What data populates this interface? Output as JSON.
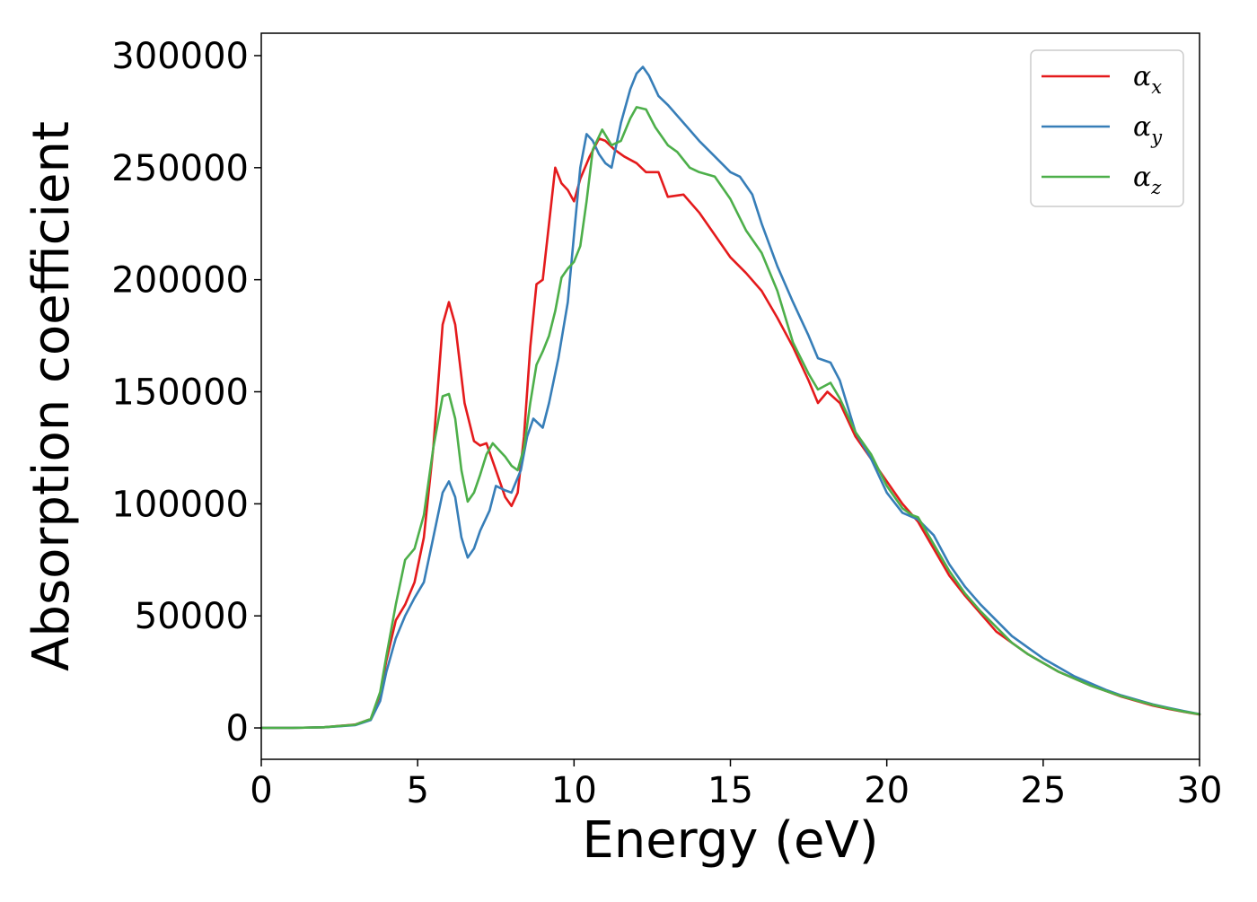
{
  "chart_data": {
    "type": "line",
    "xlabel": "Energy (eV)",
    "ylabel": "Absorption coefficient",
    "xlim": [
      0,
      30
    ],
    "ylim": [
      -14000,
      310000
    ],
    "xticks": [
      0,
      5,
      10,
      15,
      20,
      25,
      30
    ],
    "xtick_labels": [
      "0",
      "5",
      "10",
      "15",
      "20",
      "25",
      "30"
    ],
    "yticks": [
      0,
      50000,
      100000,
      150000,
      200000,
      250000,
      300000
    ],
    "ytick_labels": [
      "0",
      "50000",
      "100000",
      "150000",
      "200000",
      "250000",
      "300000"
    ],
    "grid": false,
    "legend_position": "top-right",
    "series": [
      {
        "name": "αx",
        "legend_symbol": "α",
        "legend_subscript": "x",
        "color": "#e41a1c",
        "points": [
          [
            0,
            0
          ],
          [
            1,
            0
          ],
          [
            2,
            300
          ],
          [
            3,
            1500
          ],
          [
            3.5,
            4000
          ],
          [
            3.8,
            15000
          ],
          [
            4,
            30000
          ],
          [
            4.3,
            48000
          ],
          [
            4.6,
            55000
          ],
          [
            4.9,
            65000
          ],
          [
            5.2,
            85000
          ],
          [
            5.5,
            125000
          ],
          [
            5.8,
            180000
          ],
          [
            6,
            190000
          ],
          [
            6.2,
            180000
          ],
          [
            6.5,
            145000
          ],
          [
            6.8,
            128000
          ],
          [
            7,
            126000
          ],
          [
            7.2,
            127000
          ],
          [
            7.5,
            115000
          ],
          [
            7.8,
            103000
          ],
          [
            8,
            99000
          ],
          [
            8.2,
            105000
          ],
          [
            8.4,
            130000
          ],
          [
            8.6,
            170000
          ],
          [
            8.8,
            198000
          ],
          [
            9,
            200000
          ],
          [
            9.2,
            225000
          ],
          [
            9.4,
            250000
          ],
          [
            9.6,
            243000
          ],
          [
            9.8,
            240000
          ],
          [
            10,
            235000
          ],
          [
            10.2,
            245000
          ],
          [
            10.5,
            255000
          ],
          [
            10.8,
            263000
          ],
          [
            11,
            262000
          ],
          [
            11.3,
            258000
          ],
          [
            11.6,
            255000
          ],
          [
            12,
            252000
          ],
          [
            12.3,
            248000
          ],
          [
            12.7,
            248000
          ],
          [
            13,
            237000
          ],
          [
            13.5,
            238000
          ],
          [
            14,
            230000
          ],
          [
            14.5,
            220000
          ],
          [
            15,
            210000
          ],
          [
            15.5,
            203000
          ],
          [
            16,
            195000
          ],
          [
            16.5,
            183000
          ],
          [
            17,
            170000
          ],
          [
            17.5,
            155000
          ],
          [
            17.8,
            145000
          ],
          [
            18.1,
            150000
          ],
          [
            18.5,
            145000
          ],
          [
            19,
            130000
          ],
          [
            19.5,
            120000
          ],
          [
            20,
            110000
          ],
          [
            20.5,
            100000
          ],
          [
            21,
            92000
          ],
          [
            21.5,
            80000
          ],
          [
            22,
            68000
          ],
          [
            22.5,
            59000
          ],
          [
            23,
            51000
          ],
          [
            23.5,
            43000
          ],
          [
            24,
            38000
          ],
          [
            24.5,
            33000
          ],
          [
            25,
            29000
          ],
          [
            25.5,
            25000
          ],
          [
            26,
            22000
          ],
          [
            26.5,
            19000
          ],
          [
            27,
            16500
          ],
          [
            27.5,
            14000
          ],
          [
            28,
            12000
          ],
          [
            28.5,
            10000
          ],
          [
            29,
            8500
          ],
          [
            29.5,
            7200
          ],
          [
            30,
            6000
          ]
        ]
      },
      {
        "name": "αy",
        "legend_symbol": "α",
        "legend_subscript": "y",
        "color": "#377eb8",
        "points": [
          [
            0,
            0
          ],
          [
            1,
            0
          ],
          [
            2,
            300
          ],
          [
            3,
            1200
          ],
          [
            3.5,
            3500
          ],
          [
            3.8,
            12000
          ],
          [
            4,
            25000
          ],
          [
            4.3,
            40000
          ],
          [
            4.6,
            50000
          ],
          [
            4.9,
            58000
          ],
          [
            5.2,
            65000
          ],
          [
            5.5,
            85000
          ],
          [
            5.8,
            105000
          ],
          [
            6,
            110000
          ],
          [
            6.2,
            103000
          ],
          [
            6.4,
            85000
          ],
          [
            6.6,
            76000
          ],
          [
            6.8,
            80000
          ],
          [
            7,
            88000
          ],
          [
            7.3,
            97000
          ],
          [
            7.5,
            108000
          ],
          [
            7.8,
            106000
          ],
          [
            8,
            105000
          ],
          [
            8.3,
            115000
          ],
          [
            8.5,
            130000
          ],
          [
            8.7,
            138000
          ],
          [
            9,
            134000
          ],
          [
            9.2,
            145000
          ],
          [
            9.5,
            165000
          ],
          [
            9.8,
            190000
          ],
          [
            10,
            220000
          ],
          [
            10.2,
            250000
          ],
          [
            10.4,
            265000
          ],
          [
            10.6,
            262000
          ],
          [
            10.8,
            256000
          ],
          [
            11,
            252000
          ],
          [
            11.2,
            250000
          ],
          [
            11.5,
            270000
          ],
          [
            11.8,
            285000
          ],
          [
            12,
            292000
          ],
          [
            12.2,
            295000
          ],
          [
            12.4,
            291000
          ],
          [
            12.7,
            282000
          ],
          [
            13,
            278000
          ],
          [
            13.5,
            270000
          ],
          [
            14,
            262000
          ],
          [
            14.5,
            255000
          ],
          [
            15,
            248000
          ],
          [
            15.3,
            246000
          ],
          [
            15.7,
            238000
          ],
          [
            16,
            225000
          ],
          [
            16.5,
            206000
          ],
          [
            17,
            190000
          ],
          [
            17.5,
            175000
          ],
          [
            17.8,
            165000
          ],
          [
            18.2,
            163000
          ],
          [
            18.5,
            155000
          ],
          [
            19,
            132000
          ],
          [
            19.5,
            120000
          ],
          [
            20,
            105000
          ],
          [
            20.5,
            96000
          ],
          [
            21,
            93000
          ],
          [
            21.5,
            86000
          ],
          [
            22,
            73000
          ],
          [
            22.5,
            63000
          ],
          [
            23,
            55000
          ],
          [
            23.5,
            48000
          ],
          [
            24,
            41000
          ],
          [
            24.5,
            36000
          ],
          [
            25,
            31000
          ],
          [
            25.5,
            27000
          ],
          [
            26,
            23000
          ],
          [
            26.5,
            20000
          ],
          [
            27,
            17000
          ],
          [
            27.5,
            14500
          ],
          [
            28,
            12500
          ],
          [
            28.5,
            10500
          ],
          [
            29,
            9000
          ],
          [
            29.5,
            7500
          ],
          [
            30,
            6200
          ]
        ]
      },
      {
        "name": "αz",
        "legend_symbol": "α",
        "legend_subscript": "z",
        "color": "#4daf4a",
        "points": [
          [
            0,
            0
          ],
          [
            1,
            0
          ],
          [
            2,
            300
          ],
          [
            3,
            1400
          ],
          [
            3.5,
            4000
          ],
          [
            3.8,
            16000
          ],
          [
            4,
            32000
          ],
          [
            4.3,
            55000
          ],
          [
            4.6,
            75000
          ],
          [
            4.9,
            80000
          ],
          [
            5.2,
            95000
          ],
          [
            5.5,
            125000
          ],
          [
            5.8,
            148000
          ],
          [
            6,
            149000
          ],
          [
            6.2,
            138000
          ],
          [
            6.4,
            115000
          ],
          [
            6.6,
            101000
          ],
          [
            6.8,
            105000
          ],
          [
            7,
            113000
          ],
          [
            7.2,
            122000
          ],
          [
            7.4,
            127000
          ],
          [
            7.6,
            124000
          ],
          [
            7.8,
            121000
          ],
          [
            8,
            117000
          ],
          [
            8.2,
            115000
          ],
          [
            8.4,
            125000
          ],
          [
            8.6,
            145000
          ],
          [
            8.8,
            162000
          ],
          [
            9,
            168000
          ],
          [
            9.2,
            175000
          ],
          [
            9.4,
            186000
          ],
          [
            9.6,
            201000
          ],
          [
            9.8,
            205000
          ],
          [
            10,
            208000
          ],
          [
            10.2,
            215000
          ],
          [
            10.4,
            235000
          ],
          [
            10.6,
            258000
          ],
          [
            10.9,
            267000
          ],
          [
            11.2,
            260000
          ],
          [
            11.5,
            262000
          ],
          [
            11.8,
            272000
          ],
          [
            12,
            277000
          ],
          [
            12.3,
            276000
          ],
          [
            12.6,
            268000
          ],
          [
            13,
            260000
          ],
          [
            13.3,
            257000
          ],
          [
            13.7,
            250000
          ],
          [
            14,
            248000
          ],
          [
            14.5,
            246000
          ],
          [
            15,
            236000
          ],
          [
            15.5,
            222000
          ],
          [
            16,
            212000
          ],
          [
            16.5,
            195000
          ],
          [
            17,
            172000
          ],
          [
            17.5,
            158000
          ],
          [
            17.8,
            151000
          ],
          [
            18.2,
            154000
          ],
          [
            18.5,
            147000
          ],
          [
            19,
            132000
          ],
          [
            19.5,
            122000
          ],
          [
            20,
            108000
          ],
          [
            20.5,
            98000
          ],
          [
            20.8,
            95000
          ],
          [
            21,
            94000
          ],
          [
            21.5,
            82000
          ],
          [
            22,
            70000
          ],
          [
            22.5,
            60000
          ],
          [
            23,
            52000
          ],
          [
            23.5,
            45000
          ],
          [
            24,
            38000
          ],
          [
            24.5,
            33000
          ],
          [
            25,
            29000
          ],
          [
            25.5,
            25000
          ],
          [
            26,
            22000
          ],
          [
            26.5,
            19000
          ],
          [
            27,
            16500
          ],
          [
            27.5,
            14200
          ],
          [
            28,
            12200
          ],
          [
            28.5,
            10300
          ],
          [
            29,
            8700
          ],
          [
            29.5,
            7300
          ],
          [
            30,
            6100
          ]
        ]
      }
    ]
  }
}
